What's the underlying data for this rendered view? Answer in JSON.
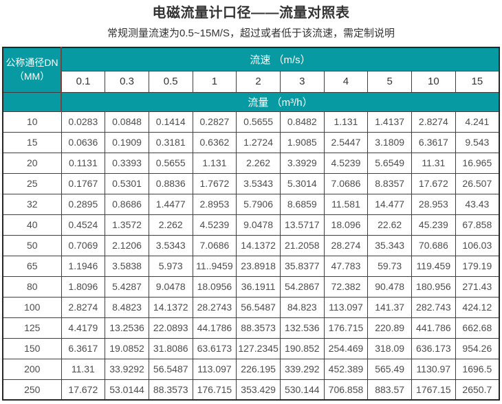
{
  "title": "电磁流量计口径——流量对照表",
  "subtitle": "常规测量流速为0.5~15M/S，超过或者低于该流速，需定制说明",
  "colors": {
    "accent_teal": "#079aa2",
    "red_divider": "#7a423c",
    "grid_border": "#3d3d3d",
    "outer_border": "#262626",
    "text_dark": "#333333",
    "text_data": "#4c4c4c",
    "header_text": "#ffffff"
  },
  "table": {
    "corner_header": {
      "line1": "公称通径DN",
      "line2": "（MM）"
    },
    "speed_header": "流速 （m/s）",
    "flow_header": "流量 （m³/h）",
    "flow_header_unit_base": "m",
    "flow_header_unit_sup": "3",
    "speed_values": [
      "0.1",
      "0.3",
      "0.5",
      "1",
      "2",
      "3",
      "4",
      "5",
      "10",
      "15"
    ],
    "rows": [
      {
        "dn": "10",
        "values": [
          "0.0283",
          "0.0848",
          "0.1414",
          "0.2827",
          "0.5655",
          "0.8482",
          "1.131",
          "1.4137",
          "2.8274",
          "4.241"
        ]
      },
      {
        "dn": "15",
        "values": [
          "0.0636",
          "0.1909",
          "0.3181",
          "0.6362",
          "1.2724",
          "1.9085",
          "2.5447",
          "3.1809",
          "6.3617",
          "9.543"
        ]
      },
      {
        "dn": "20",
        "values": [
          "0.1131",
          "0.3393",
          "0.5655",
          "1.131",
          "2.262",
          "3.3929",
          "4.5239",
          "5.6549",
          "11.31",
          "16.965"
        ]
      },
      {
        "dn": "25",
        "values": [
          "0.1767",
          "0.5301",
          "0.8836",
          "1.7672",
          "3.5343",
          "5.3014",
          "7.0686",
          "8.8357",
          "17.672",
          "26.507"
        ]
      },
      {
        "dn": "32",
        "values": [
          "0.2895",
          "0.8686",
          "1.4477",
          "2.8953",
          "5.7906",
          "8.6859",
          "11.581",
          "14.477",
          "28.953",
          "43.43"
        ]
      },
      {
        "dn": "40",
        "values": [
          "0.4524",
          "1.3572",
          "2.262",
          "4.5239",
          "9.0478",
          "13.5717",
          "18.096",
          "22.62",
          "45.239",
          "67.858"
        ]
      },
      {
        "dn": "50",
        "values": [
          "0.7069",
          "2.1206",
          "3.5343",
          "7.0686",
          "14.1372",
          "21.2058",
          "28.274",
          "35.343",
          "70.686",
          "106.03"
        ]
      },
      {
        "dn": "65",
        "values": [
          "1.1946",
          "3.5838",
          "5.973",
          "11..9459",
          "23.8918",
          "35.8377",
          "47.783",
          "59.73",
          "119.459",
          "179.19"
        ]
      },
      {
        "dn": "80",
        "values": [
          "1.8096",
          "5.4287",
          "9.0478",
          "18.0956",
          "36.1911",
          "54.2867",
          "72.382",
          "90.478",
          "180.956",
          "271.43"
        ]
      },
      {
        "dn": "100",
        "values": [
          "2.8274",
          "8.4823",
          "14.1372",
          "28.2743",
          "56.5487",
          "84.823",
          "113.097",
          "141.37",
          "282.743",
          "424.12"
        ]
      },
      {
        "dn": "125",
        "values": [
          "4.4179",
          "13.2536",
          "22.0893",
          "44.1786",
          "88.3573",
          "132.536",
          "176.715",
          "220.89",
          "441.786",
          "662.68"
        ]
      },
      {
        "dn": "150",
        "values": [
          "6.3617",
          "19.0852",
          "31.8086",
          "63.6173",
          "127.2345",
          "190.852",
          "254.469",
          "318.09",
          "636.173",
          "954.26"
        ]
      },
      {
        "dn": "200",
        "values": [
          "11.31",
          "33.9292",
          "56.5487",
          "113.097",
          "226.195",
          "339.292",
          "452.389",
          "565.49",
          "1130.97",
          "1696.5"
        ]
      },
      {
        "dn": "250",
        "values": [
          "17.672",
          "53.0144",
          "88.3573",
          "176.715",
          "353.429",
          "530.144",
          "706.858",
          "883.57",
          "1767.15",
          "2650.7"
        ]
      }
    ]
  }
}
